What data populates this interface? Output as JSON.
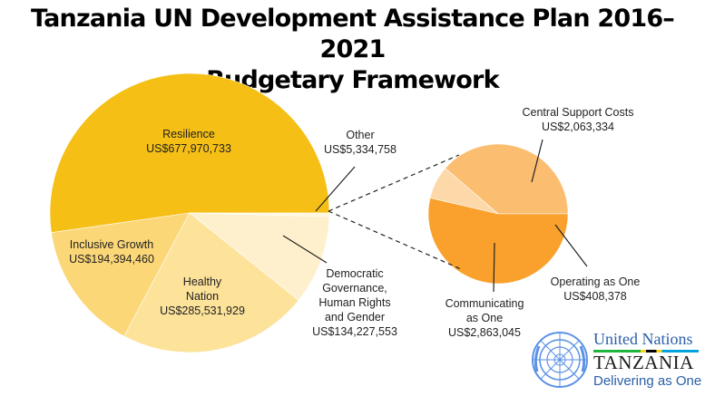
{
  "title_line1": "Tanzania UN Development Assistance Plan 2016–2021",
  "title_line2": "Budgetary Framework",
  "logo": {
    "org": "United Nations",
    "country": "TANZANIA",
    "tagline": "Delivering as One"
  },
  "chart_data": [
    {
      "type": "pie",
      "title": "Tanzania UN Development Assistance Plan 2016–2021 Budgetary Framework",
      "slices": [
        {
          "label_lines": [
            "Resilience"
          ],
          "value_label": "US$677,970,733",
          "value": 677970733,
          "color": "#f5bf16"
        },
        {
          "label_lines": [
            "Inclusive Growth"
          ],
          "value_label": "US$194,394,460",
          "value": 194394460,
          "color": "#fbd778"
        },
        {
          "label_lines": [
            "Healthy",
            "Nation"
          ],
          "value_label": "US$285,531,929",
          "value": 285531929,
          "color": "#fde29a"
        },
        {
          "label_lines": [
            "Democratic",
            "Governance,",
            "Human Rights",
            "and Gender"
          ],
          "value_label": "US$134,227,553",
          "value": 134227553,
          "color": "#fef0cc"
        },
        {
          "label_lines": [
            "Other"
          ],
          "value_label": "US$5,334,758",
          "value": 5334758,
          "color": "#fff6dd"
        }
      ]
    },
    {
      "type": "pie",
      "title": "Other",
      "slices": [
        {
          "label_lines": [
            "Central Support Costs"
          ],
          "value_label": "US$2,063,334",
          "value": 2063334,
          "color": "#fbbd70"
        },
        {
          "label_lines": [
            "Operating as One"
          ],
          "value_label": "US$408,378",
          "value": 408378,
          "color": "#fdd8a8"
        },
        {
          "label_lines": [
            "Communicating",
            "as One"
          ],
          "value_label": "US$2,863,045",
          "value": 2863045,
          "color": "#f9a12c"
        }
      ]
    }
  ]
}
